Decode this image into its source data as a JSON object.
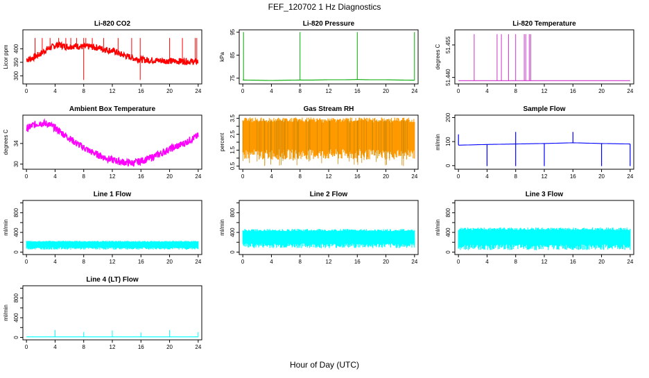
{
  "figure": {
    "title": "FEF_120702  1 Hz Diagnostics",
    "xlabel": "Hour of Day (UTC)"
  },
  "chart_data": [
    {
      "type": "line",
      "title": "Li-820 CO2",
      "ylabel": "Licor ppm",
      "color": "#ff0000",
      "xlim": [
        -0.5,
        24.5
      ],
      "ylim": [
        270,
        470
      ],
      "xticks": [
        0,
        4,
        8,
        12,
        16,
        20,
        24
      ],
      "yticks": [
        300,
        350,
        400
      ],
      "series": [
        {
          "x": [
            0,
            0.5,
            1,
            1.5,
            2,
            2.5,
            3,
            3.5,
            4,
            4.5,
            5,
            5.5,
            6,
            6.5,
            7,
            7.5,
            8,
            8.5,
            9,
            9.5,
            10,
            10.5,
            11,
            11.5,
            12,
            12.5,
            13,
            13.5,
            14,
            14.5,
            15,
            15.5,
            16,
            17,
            18,
            19,
            20,
            21,
            22,
            23,
            24
          ],
          "y": [
            360,
            362,
            368,
            375,
            382,
            392,
            400,
            405,
            412,
            415,
            412,
            408,
            408,
            410,
            410,
            408,
            407,
            408,
            408,
            405,
            405,
            400,
            398,
            395,
            392,
            390,
            380,
            378,
            372,
            370,
            365,
            362,
            360,
            358,
            357,
            356,
            355,
            354,
            354,
            353,
            352
          ]
        }
      ],
      "spikes": [
        1.2,
        2.2,
        3.3,
        4.5,
        5.5,
        6.2,
        7.0,
        8.0,
        8.3,
        9.2,
        10.8,
        12.8,
        14.7,
        15.9,
        20.0,
        21.8,
        23.6,
        23.8
      ]
    },
    {
      "type": "line",
      "title": "Li-820 Pressure",
      "ylabel": "kPa",
      "color": "#00aa00",
      "xlim": [
        -0.5,
        24.5
      ],
      "ylim": [
        72.5,
        96
      ],
      "xticks": [
        0,
        4,
        8,
        12,
        16,
        20,
        24
      ],
      "yticks": [
        75,
        85,
        95
      ],
      "series": [
        {
          "x": [
            0,
            2,
            4,
            6,
            8,
            10,
            12,
            14,
            16,
            18,
            20,
            22,
            24
          ],
          "y": [
            74.2,
            74.1,
            74.0,
            74.1,
            74.2,
            74.2,
            74.3,
            74.3,
            74.4,
            74.3,
            74.3,
            74.2,
            74.1
          ]
        }
      ],
      "spikes": [
        0.1,
        8.0,
        16.0,
        24.0
      ]
    },
    {
      "type": "line",
      "title": "Li-820 Temperature",
      "ylabel": "degrees C",
      "color": "#cc33cc",
      "xlim": [
        -0.5,
        24.5
      ],
      "ylim": [
        51.437,
        51.462
      ],
      "xticks": [
        0,
        4,
        8,
        12,
        16,
        20,
        24
      ],
      "yticks": [
        51.44,
        51.455
      ],
      "ytick_labels": [
        "51.440",
        "51.455"
      ],
      "series": [
        {
          "x": [
            0,
            24
          ],
          "y": [
            51.4385,
            51.4385
          ]
        }
      ],
      "spikes": [
        2.2,
        5.4,
        6.0,
        7.0,
        8.0,
        9.2,
        9.4,
        9.9,
        10.1
      ]
    },
    {
      "type": "line",
      "title": "Ambient Box Temperature",
      "ylabel": "degrees C",
      "color": "#ff00ff",
      "xlim": [
        -0.5,
        24.5
      ],
      "ylim": [
        29,
        39.5
      ],
      "xticks": [
        0,
        4,
        8,
        12,
        16,
        20,
        24
      ],
      "yticks": [
        30,
        34
      ],
      "series": [
        {
          "x": [
            0,
            1,
            2,
            3,
            4,
            5,
            6,
            7,
            8,
            9,
            10,
            11,
            12,
            13,
            14,
            15,
            16,
            17,
            18,
            19,
            20,
            21,
            22,
            23,
            24
          ],
          "y": [
            36.8,
            37.6,
            38.0,
            37.8,
            37.0,
            36.0,
            35.0,
            34.0,
            33.2,
            32.4,
            31.8,
            31.2,
            30.8,
            30.5,
            30.3,
            30.2,
            30.6,
            31.0,
            31.6,
            32.2,
            32.9,
            33.4,
            34.0,
            34.8,
            35.5
          ]
        }
      ]
    },
    {
      "type": "area",
      "title": "Gas Stream RH",
      "ylabel": "percent",
      "color": "#ff9900",
      "xlim": [
        -0.5,
        24.5
      ],
      "ylim": [
        0.3,
        3.7
      ],
      "xticks": [
        0,
        4,
        8,
        12,
        16,
        20,
        24
      ],
      "yticks": [
        0.5,
        1.0,
        1.5,
        2.0,
        2.5,
        3.0,
        3.5
      ],
      "ytick_labels": [
        "0.5",
        "1.5",
        "2.5",
        "3.5"
      ],
      "band": {
        "low": 0.9,
        "high": 3.55
      }
    },
    {
      "type": "line",
      "title": "Sample Flow",
      "ylabel": "ml/min",
      "color": "#0000ff",
      "xlim": [
        -0.5,
        24.5
      ],
      "ylim": [
        -15,
        210
      ],
      "xticks": [
        0,
        4,
        8,
        12,
        16,
        20,
        24
      ],
      "yticks": [
        0,
        100,
        200
      ],
      "series": [
        {
          "x": [
            0,
            4,
            8,
            12,
            16,
            20,
            24
          ],
          "y": [
            85,
            88,
            90,
            92,
            95,
            92,
            90
          ]
        }
      ],
      "dips": [
        4,
        8,
        12,
        20,
        24
      ],
      "peaks": [
        8,
        16
      ]
    },
    {
      "type": "area",
      "title": "Line 1 Flow",
      "ylabel": "ml/min",
      "color": "#00ffff",
      "xlim": [
        -0.5,
        24.5
      ],
      "ylim": [
        -50,
        1050
      ],
      "xticks": [
        0,
        4,
        8,
        12,
        16,
        20,
        24
      ],
      "yticks": [
        0,
        200,
        400,
        600,
        800,
        1000
      ],
      "ytick_labels": [
        "0",
        "400",
        "800"
      ],
      "band": {
        "low": 50,
        "high": 230
      }
    },
    {
      "type": "area",
      "title": "Line 2 Flow",
      "ylabel": "ml/min",
      "color": "#00ffff",
      "xlim": [
        -0.5,
        24.5
      ],
      "ylim": [
        -50,
        1050
      ],
      "xticks": [
        0,
        4,
        8,
        12,
        16,
        20,
        24
      ],
      "yticks": [
        0,
        200,
        400,
        600,
        800,
        1000
      ],
      "ytick_labels": [
        "0",
        "400",
        "800"
      ],
      "band": {
        "low": 80,
        "high": 470
      }
    },
    {
      "type": "area",
      "title": "Line 3 Flow",
      "ylabel": "ml/min",
      "color": "#00ffff",
      "xlim": [
        -0.5,
        24.5
      ],
      "ylim": [
        -50,
        1050
      ],
      "xticks": [
        0,
        4,
        8,
        12,
        16,
        20,
        24
      ],
      "yticks": [
        0,
        200,
        400,
        600,
        800,
        1000
      ],
      "ytick_labels": [
        "0",
        "400",
        "800"
      ],
      "band": {
        "low": 40,
        "high": 500
      }
    },
    {
      "type": "line",
      "title": "Line 4 (LT) Flow",
      "ylabel": "ml/min",
      "color": "#00ffff",
      "xlim": [
        -0.5,
        24.5
      ],
      "ylim": [
        -50,
        1050
      ],
      "xticks": [
        0,
        4,
        8,
        12,
        16,
        20,
        24
      ],
      "yticks": [
        0,
        200,
        400,
        600,
        800,
        1000
      ],
      "ytick_labels": [
        "0",
        "400",
        "800"
      ],
      "series": [
        {
          "x": [
            0,
            24
          ],
          "y": [
            10,
            10
          ]
        }
      ],
      "spikes": [
        4,
        8,
        12,
        16,
        20,
        24
      ],
      "spike_height": [
        150,
        110,
        140,
        100,
        150,
        110
      ]
    }
  ]
}
